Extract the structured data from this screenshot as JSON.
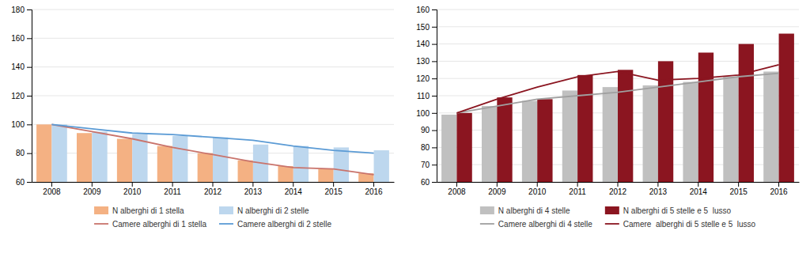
{
  "chart_data": [
    {
      "type": "bar",
      "categories": [
        "2008",
        "2009",
        "2010",
        "2011",
        "2012",
        "2013",
        "2014",
        "2015",
        "2016"
      ],
      "series": [
        {
          "name": "N alberghi di 1 stella",
          "type": "bar",
          "color": "#f4b183",
          "values": [
            100,
            94,
            90,
            85,
            80,
            75,
            71,
            69,
            66
          ]
        },
        {
          "name": "N alberghi di 2 stelle",
          "type": "bar",
          "color": "#bdd7ee",
          "values": [
            100,
            95,
            93,
            92,
            91,
            86,
            85,
            84,
            82
          ]
        },
        {
          "name": "Camere alberghi di 1 stella",
          "type": "line",
          "color": "#c9736b",
          "values": [
            100,
            95,
            90,
            84,
            79,
            74,
            70,
            69,
            65
          ]
        },
        {
          "name": "Camere alberghi di 2 stelle",
          "type": "line",
          "color": "#5b9bd5",
          "values": [
            100,
            97,
            94,
            93,
            91,
            89,
            85,
            82,
            80
          ]
        }
      ],
      "ylim": [
        60,
        180
      ],
      "yticks": [
        60,
        80,
        100,
        120,
        140,
        160,
        180
      ],
      "grid": true,
      "legend": "bottom"
    },
    {
      "type": "bar",
      "categories": [
        "2008",
        "2009",
        "2010",
        "2011",
        "2012",
        "2013",
        "2014",
        "2015",
        "2016"
      ],
      "series": [
        {
          "name": "N alberghi di 4 stelle",
          "type": "bar",
          "color": "#c0c0c0",
          "values": [
            99,
            104,
            107,
            113,
            115,
            116,
            118,
            121,
            124
          ]
        },
        {
          "name": "N alberghi di 5 stelle e 5  lusso",
          "type": "bar",
          "color": "#8b1520",
          "values": [
            100,
            109,
            108,
            122,
            125,
            130,
            135,
            140,
            146
          ]
        },
        {
          "name": "Camere alberghi di 4 stelle",
          "type": "line",
          "color": "#a0a0a0",
          "values": [
            100,
            104,
            108,
            110,
            112,
            115,
            118,
            121,
            123
          ]
        },
        {
          "name": "Camere  alberghi di 5 stelle e 5  lusso",
          "type": "line",
          "color": "#8b1520",
          "values": [
            100,
            108,
            115,
            121,
            124,
            119,
            120,
            122,
            128
          ]
        }
      ],
      "ylim": [
        60,
        160
      ],
      "yticks": [
        60,
        70,
        80,
        90,
        100,
        110,
        120,
        130,
        140,
        150,
        160
      ],
      "grid": true,
      "legend": "bottom"
    }
  ]
}
